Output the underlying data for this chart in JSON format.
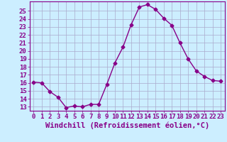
{
  "x": [
    0,
    1,
    2,
    3,
    4,
    5,
    6,
    7,
    8,
    9,
    10,
    11,
    12,
    13,
    14,
    15,
    16,
    17,
    18,
    19,
    20,
    21,
    22,
    23
  ],
  "y": [
    16.1,
    16.0,
    14.9,
    14.2,
    12.9,
    13.1,
    13.0,
    13.3,
    13.3,
    15.8,
    18.5,
    20.5,
    23.3,
    25.5,
    25.8,
    25.2,
    24.1,
    23.2,
    21.0,
    19.0,
    17.5,
    16.8,
    16.3,
    16.2
  ],
  "line_color": "#880088",
  "marker": "D",
  "markersize": 2.5,
  "linewidth": 1,
  "xlabel": "Windchill (Refroidissement éolien,°C)",
  "xlim": [
    -0.5,
    23.5
  ],
  "ylim": [
    12.5,
    26.2
  ],
  "yticks": [
    13,
    14,
    15,
    16,
    17,
    18,
    19,
    20,
    21,
    22,
    23,
    24,
    25
  ],
  "xticks": [
    0,
    1,
    2,
    3,
    4,
    5,
    6,
    7,
    8,
    9,
    10,
    11,
    12,
    13,
    14,
    15,
    16,
    17,
    18,
    19,
    20,
    21,
    22,
    23
  ],
  "bg_color": "#cceeff",
  "grid_color": "#aaaacc",
  "tick_fontsize": 6.5,
  "xlabel_fontsize": 7.5
}
